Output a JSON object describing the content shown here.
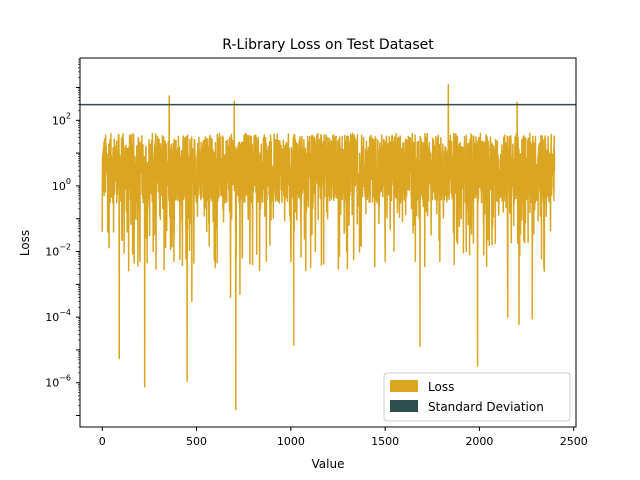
{
  "chart_data": {
    "type": "line",
    "title": "R-Library Loss on Test Dataset",
    "xlabel": "Value",
    "ylabel": "Loss",
    "yscale": "log",
    "xlim": [
      -118,
      2512
    ],
    "ylim_log10": [
      -7.35,
      3.9
    ],
    "x_ticks": [
      0,
      500,
      1000,
      1500,
      2000,
      2500
    ],
    "y_ticks": [
      {
        "exp": 2,
        "base": "10",
        "sup": "2"
      },
      {
        "exp": 0,
        "base": "10",
        "sup": "0"
      },
      {
        "exp": -2,
        "base": "10",
        "sup": "−2"
      },
      {
        "exp": -4,
        "base": "10",
        "sup": "−4"
      },
      {
        "exp": -6,
        "base": "10",
        "sup": "−6"
      }
    ],
    "grid": false,
    "legend_position": "lower-right",
    "legend": [
      {
        "label": "Loss",
        "color": "#daa520"
      },
      {
        "label": "Standard Deviation",
        "color": "#2f4f4f"
      }
    ],
    "series": [
      {
        "name": "Loss",
        "color": "#daa520",
        "n_points": 2400,
        "x_range": [
          0,
          2399
        ],
        "typical_range": [
          0.3,
          40
        ],
        "notable_points": [
          {
            "x": 0,
            "y": 0.04
          },
          {
            "x": 90,
            "y": 5.5e-06
          },
          {
            "x": 168,
            "y": 0.02
          },
          {
            "x": 200,
            "y": 0.005
          },
          {
            "x": 225,
            "y": 7.5e-07
          },
          {
            "x": 270,
            "y": 0.01
          },
          {
            "x": 355,
            "y": 550
          },
          {
            "x": 380,
            "y": 0.005
          },
          {
            "x": 450,
            "y": 1.1e-06
          },
          {
            "x": 475,
            "y": 0.0003
          },
          {
            "x": 680,
            "y": 0.0004
          },
          {
            "x": 700,
            "y": 380
          },
          {
            "x": 708,
            "y": 1.5e-07
          },
          {
            "x": 730,
            "y": 0.0005
          },
          {
            "x": 870,
            "y": 0.005
          },
          {
            "x": 1000,
            "y": 0.005
          },
          {
            "x": 1015,
            "y": 1.4e-05
          },
          {
            "x": 1130,
            "y": 0.01
          },
          {
            "x": 1300,
            "y": 0.003
          },
          {
            "x": 1500,
            "y": 0.005
          },
          {
            "x": 1660,
            "y": 0.005
          },
          {
            "x": 1685,
            "y": 1.3e-05
          },
          {
            "x": 1790,
            "y": 0.005
          },
          {
            "x": 1835,
            "y": 1200
          },
          {
            "x": 1930,
            "y": 0.01
          },
          {
            "x": 1990,
            "y": 3.2e-06
          },
          {
            "x": 2150,
            "y": 0.0001
          },
          {
            "x": 2200,
            "y": 350
          },
          {
            "x": 2210,
            "y": 6e-05
          },
          {
            "x": 2280,
            "y": 9e-05
          },
          {
            "x": 2399,
            "y": 3
          }
        ]
      },
      {
        "name": "Standard Deviation",
        "color": "#2f4f4f",
        "type": "hline",
        "y": 300
      }
    ]
  }
}
